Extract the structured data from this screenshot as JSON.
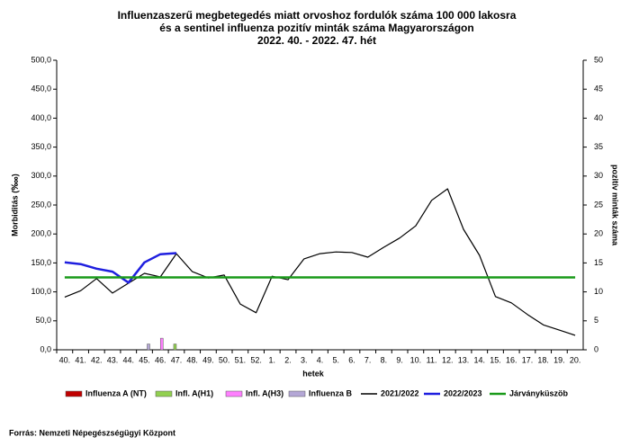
{
  "chart_data": {
    "type": "combo",
    "title": [
      "Influenzaszerű megbetegedés miatt orvoshoz fordulók száma 100 000 lakosra",
      "és a sentinel influenza pozitív minták száma Magyarországon",
      "2022. 40. - 2022. 47. hét"
    ],
    "ylabel": "Morbiditás (‱)",
    "y2label": "pozitív minták száma",
    "xlabel": "hetek",
    "source": "Forrás: Nemzeti Népegészségügyi Központ",
    "categories": [
      "40.",
      "41.",
      "42.",
      "43.",
      "44.",
      "45.",
      "46.",
      "47.",
      "48.",
      "49.",
      "50.",
      "51.",
      "52.",
      "1.",
      "2.",
      "3.",
      "4.",
      "5.",
      "6.",
      "7.",
      "8.",
      "9.",
      "10.",
      "11.",
      "12.",
      "13.",
      "14.",
      "15.",
      "16.",
      "17.",
      "18.",
      "19.",
      "20."
    ],
    "ylim": [
      0,
      500
    ],
    "yticks": [
      {
        "value": 0,
        "label": "0,0"
      },
      {
        "value": 50,
        "label": "50,0"
      },
      {
        "value": 100,
        "label": "100,0"
      },
      {
        "value": 150,
        "label": "150,0"
      },
      {
        "value": 200,
        "label": "200,0"
      },
      {
        "value": 250,
        "label": "250,0"
      },
      {
        "value": 300,
        "label": "300,0"
      },
      {
        "value": 350,
        "label": "350,0"
      },
      {
        "value": 400,
        "label": "400,0"
      },
      {
        "value": 450,
        "label": "450,0"
      },
      {
        "value": 500,
        "label": "500,0"
      }
    ],
    "y2lim": [
      0,
      50
    ],
    "y2ticks": [
      0,
      5,
      10,
      15,
      20,
      25,
      30,
      35,
      40,
      45,
      50
    ],
    "series": [
      {
        "name": "Influenza A (NT)",
        "type": "bar",
        "axis": "y2",
        "color": "#c00000",
        "values": [
          0,
          0,
          0,
          0,
          0,
          0,
          0,
          0,
          null,
          null,
          null,
          null,
          null,
          null,
          null,
          null,
          null,
          null,
          null,
          null,
          null,
          null,
          null,
          null,
          null,
          null,
          null,
          null,
          null,
          null,
          null,
          null,
          null
        ]
      },
      {
        "name": "Infl. A(H1)",
        "type": "bar",
        "axis": "y2",
        "color": "#92d050",
        "values": [
          0,
          0,
          0,
          0,
          0,
          0,
          0,
          1,
          null,
          null,
          null,
          null,
          null,
          null,
          null,
          null,
          null,
          null,
          null,
          null,
          null,
          null,
          null,
          null,
          null,
          null,
          null,
          null,
          null,
          null,
          null,
          null,
          null
        ]
      },
      {
        "name": "Infl. A(H3)",
        "type": "bar",
        "axis": "y2",
        "color": "#ff80ff",
        "values": [
          0,
          0,
          0,
          0,
          0,
          0,
          2,
          0,
          null,
          null,
          null,
          null,
          null,
          null,
          null,
          null,
          null,
          null,
          null,
          null,
          null,
          null,
          null,
          null,
          null,
          null,
          null,
          null,
          null,
          null,
          null,
          null,
          null
        ]
      },
      {
        "name": "Influenza B",
        "type": "bar",
        "axis": "y2",
        "color": "#b4a7d6",
        "values": [
          0,
          0,
          0,
          0,
          0,
          1,
          0,
          0,
          null,
          null,
          null,
          null,
          null,
          null,
          null,
          null,
          null,
          null,
          null,
          null,
          null,
          null,
          null,
          null,
          null,
          null,
          null,
          null,
          null,
          null,
          null,
          null,
          null
        ]
      },
      {
        "name": "2021/2022",
        "type": "line",
        "color": "#000000",
        "values": [
          91,
          102,
          123,
          98,
          115,
          132,
          126,
          166,
          135,
          124,
          129,
          79,
          64,
          127,
          121,
          157,
          166,
          169,
          168,
          160,
          177,
          193,
          214,
          258,
          278,
          208,
          163,
          92,
          81,
          61,
          43,
          34,
          25
        ]
      },
      {
        "name": "2022/2023",
        "type": "line",
        "color": "#1f1fdf",
        "values": [
          151,
          148,
          140,
          135,
          116,
          151,
          165,
          167,
          null,
          null,
          null,
          null,
          null,
          null,
          null,
          null,
          null,
          null,
          null,
          null,
          null,
          null,
          null,
          null,
          null,
          null,
          null,
          null,
          null,
          null,
          null,
          null,
          null
        ]
      },
      {
        "name": "Járványküszöb",
        "type": "line",
        "color": "#1a9a1a",
        "values": [
          125,
          125,
          125,
          125,
          125,
          125,
          125,
          125,
          125,
          125,
          125,
          125,
          125,
          125,
          125,
          125,
          125,
          125,
          125,
          125,
          125,
          125,
          125,
          125,
          125,
          125,
          125,
          125,
          125,
          125,
          125,
          125,
          125
        ]
      }
    ]
  }
}
